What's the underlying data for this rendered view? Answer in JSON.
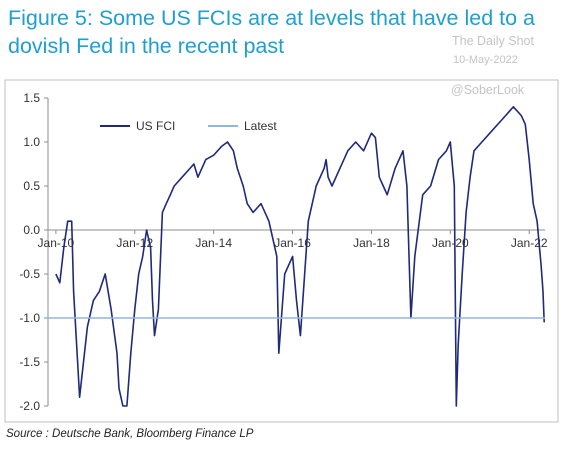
{
  "title": "Figure 5: Some US FCIs are at levels that have led to a dovish Fed in the recent past",
  "watermark": {
    "site": "The Daily Shot",
    "date": "10-May-2022",
    "handle": "@SoberLook"
  },
  "source": "Source : Deutsche Bank, Bloomberg Finance LP",
  "chart_data": {
    "type": "line",
    "ylim": [
      -2.0,
      1.5
    ],
    "yticks": [
      "1.5",
      "1.0",
      "0.5",
      "0.0",
      "-0.5",
      "-1.0",
      "-1.5",
      "-2.0"
    ],
    "xticks": [
      "Jan-10",
      "Jan-12",
      "Jan-14",
      "Jan-16",
      "Jan-18",
      "Jan-20",
      "Jan-22"
    ],
    "legend_position": "top-left",
    "series": [
      {
        "name": "US FCI",
        "color": "#1f2a7a",
        "x": [
          2010.0,
          2010.1,
          2010.2,
          2010.3,
          2010.4,
          2010.45,
          2010.55,
          2010.6,
          2010.7,
          2010.8,
          2010.95,
          2011.1,
          2011.25,
          2011.4,
          2011.55,
          2011.6,
          2011.7,
          2011.8,
          2011.9,
          2012.0,
          2012.1,
          2012.2,
          2012.3,
          2012.4,
          2012.45,
          2012.5,
          2012.6,
          2012.7,
          2012.8,
          2012.9,
          2013.0,
          2013.2,
          2013.4,
          2013.5,
          2013.6,
          2013.8,
          2014.0,
          2014.2,
          2014.35,
          2014.5,
          2014.6,
          2014.75,
          2014.85,
          2015.0,
          2015.2,
          2015.4,
          2015.6,
          2015.65,
          2015.8,
          2016.0,
          2016.1,
          2016.2,
          2016.4,
          2016.6,
          2016.8,
          2016.85,
          2016.9,
          2017.0,
          2017.2,
          2017.4,
          2017.6,
          2017.8,
          2018.0,
          2018.1,
          2018.2,
          2018.4,
          2018.6,
          2018.8,
          2018.9,
          2019.0,
          2019.1,
          2019.3,
          2019.5,
          2019.7,
          2019.9,
          2020.0,
          2020.1,
          2020.15,
          2020.2,
          2020.3,
          2020.4,
          2020.5,
          2020.6,
          2020.8,
          2021.0,
          2021.2,
          2021.4,
          2021.6,
          2021.8,
          2021.9,
          2022.0,
          2022.1,
          2022.2,
          2022.3,
          2022.35,
          2022.38
        ],
        "y": [
          -0.5,
          -0.6,
          -0.2,
          0.1,
          0.1,
          -0.7,
          -1.5,
          -1.9,
          -1.5,
          -1.1,
          -0.8,
          -0.7,
          -0.5,
          -0.9,
          -1.4,
          -1.8,
          -2.0,
          -2.0,
          -1.4,
          -0.9,
          -0.5,
          -0.3,
          0.0,
          -0.2,
          -0.8,
          -1.2,
          -0.9,
          0.2,
          0.3,
          0.4,
          0.5,
          0.6,
          0.7,
          0.75,
          0.6,
          0.8,
          0.85,
          0.95,
          1.0,
          0.9,
          0.7,
          0.5,
          0.3,
          0.2,
          0.3,
          0.1,
          -0.3,
          -1.4,
          -0.5,
          -0.3,
          -0.8,
          -1.2,
          0.1,
          0.5,
          0.7,
          0.8,
          0.6,
          0.5,
          0.7,
          0.9,
          1.0,
          0.9,
          1.1,
          1.05,
          0.6,
          0.4,
          0.7,
          0.9,
          0.5,
          -1.0,
          -0.3,
          0.4,
          0.5,
          0.8,
          0.9,
          1.0,
          0.5,
          -2.0,
          -1.3,
          -0.5,
          0.2,
          0.6,
          0.9,
          1.0,
          1.1,
          1.2,
          1.3,
          1.4,
          1.3,
          1.2,
          0.8,
          0.3,
          0.1,
          -0.4,
          -0.7,
          -1.05
        ]
      },
      {
        "name": "Latest",
        "color": "#8fb6dc",
        "x": [
          2009.7,
          2022.4
        ],
        "y": [
          -1.0,
          -1.0
        ]
      }
    ]
  }
}
